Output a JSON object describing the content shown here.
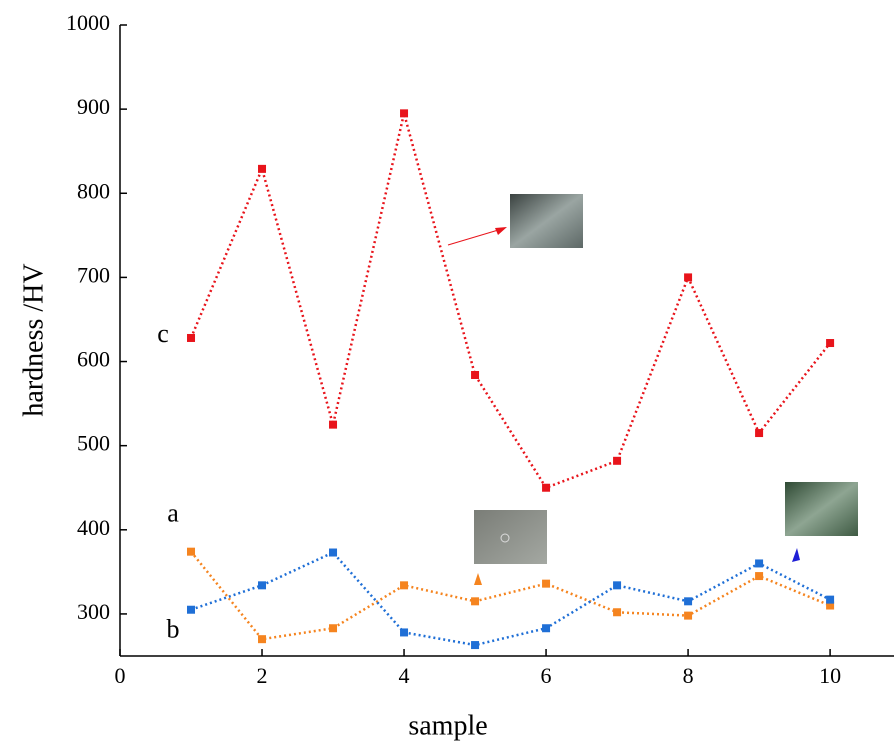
{
  "chart_data": {
    "type": "line",
    "x_label": "sample",
    "y_label": "hardness /HV",
    "x": [
      1,
      2,
      3,
      4,
      5,
      6,
      7,
      8,
      9,
      10
    ],
    "series": [
      {
        "name": "a",
        "color": "#f5841f",
        "values": [
          374,
          270,
          283,
          334,
          315,
          336,
          302,
          298,
          345,
          310
        ]
      },
      {
        "name": "b",
        "color": "#1f6fd6",
        "values": [
          305,
          334,
          373,
          278,
          263,
          283,
          334,
          315,
          360,
          317
        ]
      },
      {
        "name": "c",
        "color": "#e8141b",
        "values": [
          628,
          829,
          525,
          895,
          584,
          450,
          482,
          700,
          515,
          622
        ]
      }
    ],
    "xlim": [
      0,
      10.9
    ],
    "xticks": [
      0,
      2,
      4,
      6,
      8,
      10
    ],
    "ylim": [
      250,
      1000
    ],
    "yticks": [
      300,
      400,
      500,
      600,
      700,
      800,
      900,
      1000
    ]
  }
}
